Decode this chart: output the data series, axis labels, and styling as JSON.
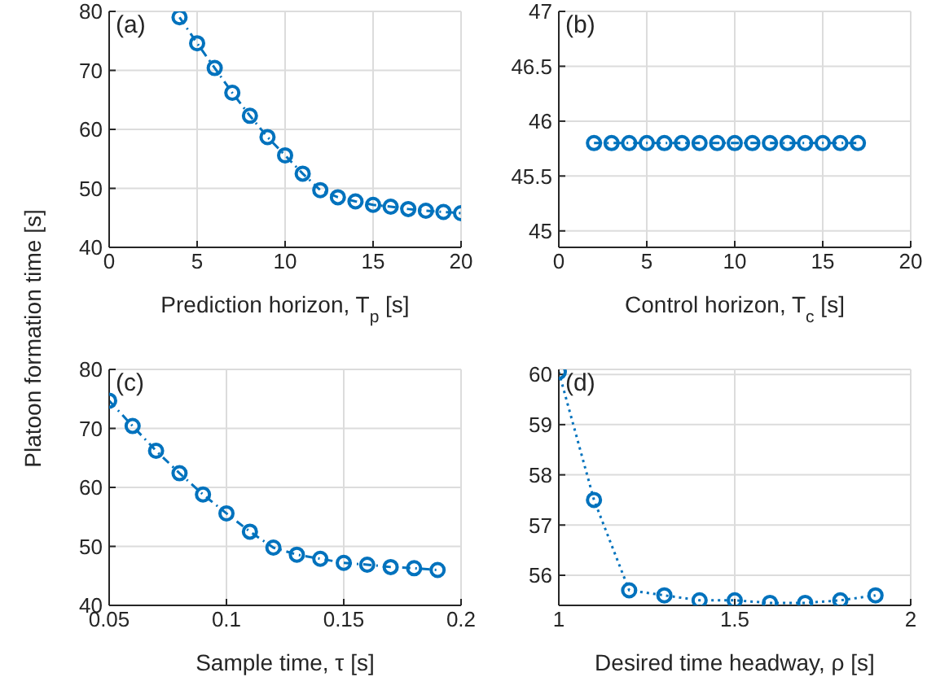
{
  "chart_data": [
    {
      "type": "line",
      "xlabel": "Prediction horizon, T$_{p}$ [s]",
      "ylabel": "Platoon formation time [s]",
      "annotations": [
        "(a)"
      ],
      "x": [
        4,
        5,
        6,
        7,
        8,
        9,
        10,
        11,
        12,
        13,
        14,
        15,
        16,
        17,
        18,
        19,
        20
      ],
      "series": [
        {
          "color": "#0072bd",
          "values": [
            79,
            74.6,
            70.4,
            66.2,
            62.3,
            58.7,
            55.6,
            52.5,
            49.7,
            48.5,
            47.8,
            47.2,
            46.9,
            46.5,
            46.2,
            46,
            45.8
          ]
        }
      ],
      "xlim": [
        0,
        20
      ],
      "xticks": [
        0,
        5,
        10,
        15,
        20
      ],
      "ylim": [
        40,
        80
      ],
      "yticks": [
        40,
        50,
        60,
        70,
        80
      ],
      "grid": true,
      "marker": "circle",
      "line_style": "dashed"
    },
    {
      "type": "line",
      "xlabel": "Control horizon, T$_{c}$ [s]",
      "annotations": [
        "(b)"
      ],
      "x": [
        2,
        3,
        4,
        5,
        6,
        7,
        8,
        9,
        10,
        11,
        12,
        13,
        14,
        15,
        16,
        17
      ],
      "series": [
        {
          "color": "#0072bd",
          "values": [
            45.8,
            45.8,
            45.8,
            45.8,
            45.8,
            45.8,
            45.8,
            45.8,
            45.8,
            45.8,
            45.8,
            45.8,
            45.8,
            45.8,
            45.8,
            45.8
          ]
        }
      ],
      "xlim": [
        0,
        20
      ],
      "xticks": [
        0,
        5,
        10,
        15,
        20
      ],
      "ylim": [
        44.85,
        47
      ],
      "yticks": [
        45,
        45.5,
        46,
        46.5,
        47
      ],
      "grid": true,
      "marker": "circle",
      "line_style": "dashed"
    },
    {
      "type": "line",
      "xlabel": "Sample time, τ [s]",
      "annotations": [
        "(c)"
      ],
      "x": [
        0.05,
        0.06,
        0.07,
        0.08,
        0.09,
        0.1,
        0.11,
        0.12,
        0.13,
        0.14,
        0.15,
        0.16,
        0.17,
        0.18,
        0.19
      ],
      "series": [
        {
          "color": "#0072bd",
          "values": [
            74.7,
            70.4,
            66.2,
            62.4,
            58.8,
            55.6,
            52.5,
            49.8,
            48.6,
            47.9,
            47.2,
            46.9,
            46.5,
            46.3,
            46
          ]
        }
      ],
      "xlim": [
        0.05,
        0.2
      ],
      "xticks": [
        0.05,
        0.1,
        0.15,
        0.2
      ],
      "ylim": [
        40,
        80
      ],
      "yticks": [
        40,
        50,
        60,
        70,
        80
      ],
      "grid": true,
      "marker": "circle",
      "line_style": "dashed"
    },
    {
      "type": "line",
      "xlabel": "Desired time headway, ρ [s]",
      "annotations": [
        "(d)"
      ],
      "x": [
        1,
        1.1,
        1.2,
        1.3,
        1.4,
        1.5,
        1.6,
        1.7,
        1.8,
        1.9
      ],
      "series": [
        {
          "color": "#0072bd",
          "values": [
            60.05,
            57.5,
            55.7,
            55.6,
            55.5,
            55.5,
            55.45,
            55.45,
            55.5,
            55.6
          ]
        }
      ],
      "xlim": [
        1,
        2
      ],
      "xticks": [
        1,
        1.5,
        2
      ],
      "ylim": [
        55.4,
        60.1
      ],
      "yticks": [
        56,
        57,
        58,
        59,
        60
      ],
      "grid": true,
      "marker": "circle",
      "line_style": "dotted"
    }
  ]
}
